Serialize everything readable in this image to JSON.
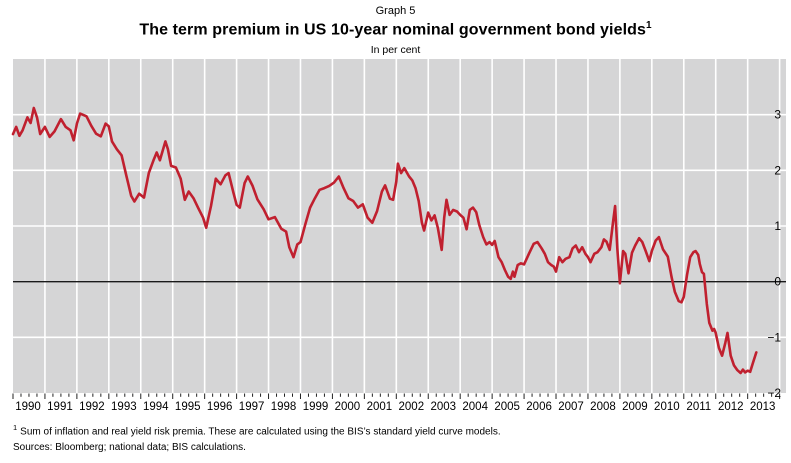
{
  "header": {
    "graph_label": "Graph 5",
    "title": "The term premium in US 10-year nominal government bond yields",
    "title_superscript": "1",
    "subtitle": "In per cent"
  },
  "footnotes": {
    "marker": "1",
    "footnote_text": "Sum of inflation and real yield risk premia. These are calculated using the BIS’s standard yield curve models.",
    "sources_text": "Sources: Bloomberg; national data; BIS calculations."
  },
  "colors": {
    "series_red": "#C0202F",
    "plot_background": "#D5D5D6",
    "gridline": "#FFFFFF",
    "zero_line": "#1a1a1a",
    "tick": "#222222"
  },
  "chart_data": {
    "type": "line",
    "title": "The term premium in US 10-year nominal government bond yields",
    "subtitle": "In per cent",
    "grid": true,
    "plot_bg_on": true,
    "zero_line": true,
    "x_axis": {
      "range": [
        1990.0,
        2014.2
      ],
      "tick_labels": [
        "1990",
        "1991",
        "1992",
        "1993",
        "1994",
        "1995",
        "1996",
        "1997",
        "1998",
        "1999",
        "2000",
        "2001",
        "2002",
        "2003",
        "2004",
        "2005",
        "2006",
        "2007",
        "2008",
        "2009",
        "2010",
        "2011",
        "2012",
        "2013"
      ],
      "minor_tick_interval_years": 0.25
    },
    "y_axis": {
      "side": "right",
      "range": [
        -2,
        4
      ],
      "tick_values": [
        3,
        2,
        1,
        0,
        -1,
        -2
      ],
      "tick_labels": [
        "3",
        "2",
        "1",
        "0",
        "−1",
        "−2"
      ]
    },
    "series": [
      {
        "name": "US 10-year term premium",
        "x": [
          1990.0,
          1990.1,
          1990.2,
          1990.3,
          1990.45,
          1990.55,
          1990.65,
          1990.75,
          1990.85,
          1991.0,
          1991.15,
          1991.3,
          1991.5,
          1991.65,
          1991.8,
          1991.9,
          1992.0,
          1992.1,
          1992.3,
          1992.45,
          1992.6,
          1992.75,
          1992.9,
          1993.0,
          1993.1,
          1993.25,
          1993.4,
          1993.55,
          1993.7,
          1993.8,
          1993.95,
          1994.1,
          1994.25,
          1994.4,
          1994.5,
          1994.6,
          1994.77,
          1994.85,
          1994.95,
          1995.1,
          1995.25,
          1995.38,
          1995.5,
          1995.65,
          1995.8,
          1995.95,
          1996.05,
          1996.2,
          1996.35,
          1996.5,
          1996.65,
          1996.75,
          1996.9,
          1997.0,
          1997.1,
          1997.25,
          1997.35,
          1997.5,
          1997.65,
          1997.85,
          1998.0,
          1998.2,
          1998.4,
          1998.55,
          1998.65,
          1998.78,
          1998.9,
          1999.0,
          1999.15,
          1999.3,
          1999.45,
          1999.6,
          1999.75,
          1999.9,
          2000.05,
          2000.2,
          2000.35,
          2000.5,
          2000.65,
          2000.8,
          2000.95,
          2001.1,
          2001.25,
          2001.4,
          2001.55,
          2001.65,
          2001.8,
          2001.9,
          2002.0,
          2002.05,
          2002.15,
          2002.25,
          2002.4,
          2002.5,
          2002.6,
          2002.7,
          2002.8,
          2002.87,
          2003.0,
          2003.1,
          2003.2,
          2003.3,
          2003.42,
          2003.5,
          2003.57,
          2003.67,
          2003.78,
          2003.9,
          2004.0,
          2004.1,
          2004.2,
          2004.3,
          2004.4,
          2004.5,
          2004.6,
          2004.72,
          2004.82,
          2004.92,
          2005.0,
          2005.08,
          2005.2,
          2005.3,
          2005.4,
          2005.5,
          2005.58,
          2005.65,
          2005.7,
          2005.8,
          2005.9,
          2006.0,
          2006.15,
          2006.3,
          2006.42,
          2006.55,
          2006.65,
          2006.75,
          2006.85,
          2006.93,
          2007.0,
          2007.1,
          2007.2,
          2007.3,
          2007.42,
          2007.52,
          2007.62,
          2007.72,
          2007.82,
          2007.92,
          2008.0,
          2008.08,
          2008.2,
          2008.3,
          2008.42,
          2008.5,
          2008.58,
          2008.68,
          2008.78,
          2008.85,
          2008.92,
          2009.0,
          2009.1,
          2009.17,
          2009.27,
          2009.38,
          2009.48,
          2009.6,
          2009.7,
          2009.8,
          2009.92,
          2010.0,
          2010.12,
          2010.22,
          2010.35,
          2010.5,
          2010.62,
          2010.72,
          2010.84,
          2010.93,
          2011.0,
          2011.1,
          2011.2,
          2011.3,
          2011.37,
          2011.45,
          2011.5,
          2011.57,
          2011.63,
          2011.72,
          2011.8,
          2011.9,
          2011.95,
          2012.0,
          2012.1,
          2012.2,
          2012.3,
          2012.37,
          2012.47,
          2012.57,
          2012.68,
          2012.78,
          2012.85,
          2012.92,
          2013.0,
          2013.08,
          2013.17,
          2013.27
        ],
        "y": [
          2.65,
          2.78,
          2.62,
          2.72,
          2.95,
          2.85,
          3.12,
          2.95,
          2.65,
          2.78,
          2.6,
          2.7,
          2.92,
          2.78,
          2.72,
          2.54,
          2.84,
          3.02,
          2.97,
          2.8,
          2.66,
          2.61,
          2.84,
          2.79,
          2.52,
          2.38,
          2.27,
          1.9,
          1.54,
          1.44,
          1.58,
          1.51,
          1.95,
          2.18,
          2.32,
          2.18,
          2.52,
          2.38,
          2.08,
          2.05,
          1.85,
          1.47,
          1.62,
          1.5,
          1.32,
          1.15,
          0.97,
          1.36,
          1.85,
          1.75,
          1.91,
          1.95,
          1.6,
          1.38,
          1.33,
          1.77,
          1.89,
          1.72,
          1.48,
          1.3,
          1.12,
          1.16,
          0.95,
          0.9,
          0.62,
          0.44,
          0.67,
          0.71,
          1.03,
          1.33,
          1.5,
          1.65,
          1.68,
          1.72,
          1.78,
          1.89,
          1.68,
          1.5,
          1.45,
          1.33,
          1.39,
          1.15,
          1.06,
          1.27,
          1.62,
          1.73,
          1.49,
          1.47,
          1.8,
          2.12,
          1.95,
          2.04,
          1.89,
          1.82,
          1.68,
          1.45,
          1.06,
          0.92,
          1.24,
          1.1,
          1.19,
          0.97,
          0.57,
          1.15,
          1.47,
          1.2,
          1.29,
          1.26,
          1.2,
          1.15,
          0.94,
          1.29,
          1.33,
          1.25,
          1.01,
          0.8,
          0.67,
          0.71,
          0.66,
          0.73,
          0.44,
          0.35,
          0.21,
          0.09,
          0.05,
          0.18,
          0.09,
          0.3,
          0.33,
          0.31,
          0.5,
          0.68,
          0.71,
          0.6,
          0.5,
          0.35,
          0.3,
          0.27,
          0.18,
          0.44,
          0.35,
          0.41,
          0.44,
          0.6,
          0.65,
          0.53,
          0.62,
          0.5,
          0.44,
          0.35,
          0.5,
          0.53,
          0.62,
          0.76,
          0.72,
          0.57,
          1.05,
          1.36,
          0.6,
          -0.03,
          0.55,
          0.5,
          0.15,
          0.52,
          0.65,
          0.78,
          0.71,
          0.56,
          0.37,
          0.55,
          0.74,
          0.8,
          0.58,
          0.45,
          0.08,
          -0.18,
          -0.35,
          -0.37,
          -0.27,
          0.12,
          0.44,
          0.53,
          0.55,
          0.48,
          0.32,
          0.17,
          0.14,
          -0.4,
          -0.74,
          -0.88,
          -0.85,
          -0.92,
          -1.19,
          -1.33,
          -1.1,
          -0.92,
          -1.33,
          -1.5,
          -1.59,
          -1.64,
          -1.58,
          -1.63,
          -1.6,
          -1.62,
          -1.45,
          -1.27
        ]
      }
    ]
  }
}
